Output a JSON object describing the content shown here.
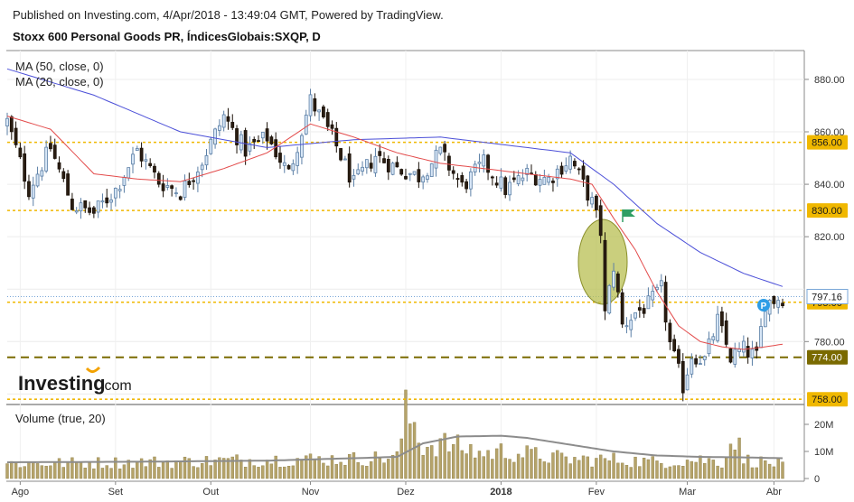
{
  "header": {
    "published": "Published on Investing.com, 4/Apr/2018 - 13:49:04 GMT, Powered by TradingView.",
    "symbol": "Stoxx 600 Personal Goods PR, ÍndicesGlobais:SXQP, D"
  },
  "legend": {
    "ma50": "MA (50, close, 0)",
    "ma20": "MA (20, close, 0)",
    "volume": "Volume (true, 20)"
  },
  "logo": {
    "brand": "Investing",
    "suffix": ".com"
  },
  "marker": {
    "letter": "P"
  },
  "colors": {
    "up_fill": "#d7e6f6",
    "up_stroke": "#5b7fa6",
    "down_fill": "#2a1d12",
    "down_stroke": "#1a1108",
    "ma50": "#4b4fd8",
    "ma20": "#e34b4b",
    "level_yellow": "#f0b800",
    "level_olive": "#7a6a00",
    "volume_bar": "#b5a36a",
    "volume_ma": "#8c8c8c",
    "ellipse": "#b8bf52",
    "flag": "#2f9e64",
    "marker": "#2e9de6"
  },
  "chart_data": [
    {
      "type": "candlestick",
      "title": "Stoxx 600 Personal Goods PR, ÍndicesGlobais:SXQP, D",
      "ylim": [
        756,
        891
      ],
      "yticks": [
        760,
        780,
        800,
        820,
        840,
        860,
        880
      ],
      "yticks_visible_labels": [
        "780.00",
        "820.00",
        "840.00",
        "860.00",
        "880.00"
      ],
      "xtick_labels": [
        "Ago",
        "Set",
        "Out",
        "Nov",
        "Dez",
        "2018",
        "Fev",
        "Mar",
        "Abr"
      ],
      "xtick_index": [
        3,
        25,
        47,
        70,
        92,
        114,
        136,
        157,
        177
      ],
      "n_days": 180,
      "last_price": "797.16",
      "levels": [
        {
          "value": 856.0,
          "label": "856.00",
          "style": "yellow"
        },
        {
          "value": 830.0,
          "label": "830.00",
          "style": "yellow"
        },
        {
          "value": 795.0,
          "label": "795.00",
          "style": "yellow"
        },
        {
          "value": 774.0,
          "label": "774.00",
          "style": "olive"
        },
        {
          "value": 758.0,
          "label": "758.00",
          "style": "yellow"
        }
      ],
      "anchor_closes": [
        [
          0,
          864
        ],
        [
          5,
          838
        ],
        [
          10,
          854
        ],
        [
          15,
          832
        ],
        [
          20,
          829
        ],
        [
          25,
          838
        ],
        [
          30,
          853
        ],
        [
          35,
          841
        ],
        [
          40,
          837
        ],
        [
          45,
          849
        ],
        [
          50,
          866
        ],
        [
          55,
          853
        ],
        [
          60,
          858
        ],
        [
          65,
          844
        ],
        [
          70,
          872
        ],
        [
          75,
          858
        ],
        [
          80,
          840
        ],
        [
          85,
          851
        ],
        [
          90,
          846
        ],
        [
          95,
          843
        ],
        [
          100,
          852
        ],
        [
          105,
          839
        ],
        [
          110,
          848
        ],
        [
          115,
          838
        ],
        [
          120,
          844
        ],
        [
          125,
          842
        ],
        [
          130,
          850
        ],
        [
          135,
          833
        ],
        [
          137,
          822
        ],
        [
          138,
          790
        ],
        [
          140,
          809
        ],
        [
          142,
          786
        ],
        [
          145,
          791
        ],
        [
          148,
          794
        ],
        [
          151,
          800
        ],
        [
          153,
          779
        ],
        [
          156,
          763
        ],
        [
          158,
          775
        ],
        [
          161,
          773
        ],
        [
          164,
          788
        ],
        [
          167,
          774
        ],
        [
          170,
          777
        ],
        [
          173,
          774
        ],
        [
          175,
          795
        ],
        [
          179,
          797
        ]
      ],
      "ma50_anchors": [
        [
          0,
          884
        ],
        [
          20,
          874
        ],
        [
          40,
          860
        ],
        [
          60,
          854
        ],
        [
          80,
          857
        ],
        [
          100,
          858
        ],
        [
          120,
          854
        ],
        [
          130,
          852
        ],
        [
          140,
          840
        ],
        [
          150,
          825
        ],
        [
          160,
          814
        ],
        [
          170,
          806
        ],
        [
          179,
          801
        ]
      ],
      "ma20_anchors": [
        [
          0,
          866
        ],
        [
          10,
          861
        ],
        [
          20,
          844
        ],
        [
          30,
          842
        ],
        [
          40,
          841
        ],
        [
          50,
          846
        ],
        [
          60,
          852
        ],
        [
          70,
          863
        ],
        [
          80,
          858
        ],
        [
          90,
          852
        ],
        [
          100,
          848
        ],
        [
          110,
          846
        ],
        [
          120,
          844
        ],
        [
          130,
          842
        ],
        [
          135,
          840
        ],
        [
          140,
          827
        ],
        [
          145,
          815
        ],
        [
          150,
          799
        ],
        [
          155,
          786
        ],
        [
          160,
          780
        ],
        [
          165,
          778
        ],
        [
          170,
          777
        ],
        [
          175,
          778
        ],
        [
          179,
          779
        ]
      ]
    },
    {
      "type": "bar",
      "title": "Volume (true, 20)",
      "ylim": [
        0,
        25
      ],
      "yticks": [
        0,
        10,
        20
      ],
      "ytick_labels": [
        "0",
        "10M",
        "20M"
      ],
      "volume_anchors": [
        [
          0,
          5.5
        ],
        [
          20,
          5.8
        ],
        [
          40,
          6.2
        ],
        [
          60,
          7.0
        ],
        [
          80,
          7.2
        ],
        [
          90,
          7.8
        ],
        [
          92,
          24
        ],
        [
          94,
          20
        ],
        [
          96,
          12
        ],
        [
          100,
          13
        ],
        [
          106,
          11
        ],
        [
          110,
          9
        ],
        [
          114,
          10
        ],
        [
          120,
          9
        ],
        [
          130,
          7
        ],
        [
          140,
          7
        ],
        [
          150,
          6
        ],
        [
          160,
          7
        ],
        [
          165,
          6
        ],
        [
          168,
          16
        ],
        [
          170,
          7
        ],
        [
          179,
          5
        ]
      ],
      "volume_ma_anchors": [
        [
          0,
          6.0
        ],
        [
          30,
          6.2
        ],
        [
          60,
          6.6
        ],
        [
          80,
          7.5
        ],
        [
          90,
          8.0
        ],
        [
          96,
          13
        ],
        [
          104,
          15.5
        ],
        [
          114,
          15.8
        ],
        [
          120,
          15.0
        ],
        [
          130,
          12.5
        ],
        [
          140,
          10
        ],
        [
          150,
          8.5
        ],
        [
          160,
          8.0
        ],
        [
          170,
          7.8
        ],
        [
          179,
          7.5
        ]
      ]
    }
  ]
}
